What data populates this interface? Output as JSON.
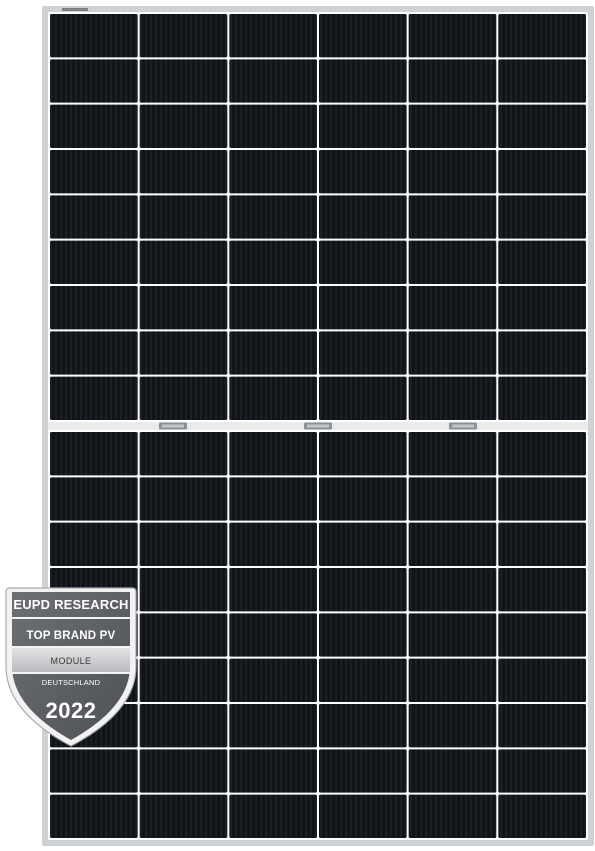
{
  "image": {
    "subject": "half-cut monocrystalline solar module",
    "frame_color": "#cfd2d5",
    "cell_color": "#101318",
    "busbar_color": "#2a2f36",
    "gap_color": "#ffffff",
    "module": {
      "cell_columns": 6,
      "cell_rows_per_half": 9,
      "halves": 2,
      "junction_boxes": 3
    }
  },
  "badge": {
    "organization": "EUPD RESEARCH",
    "title": "TOP BRAND PV",
    "category": "MODULE",
    "country": "DEUTSCHLAND",
    "year": "2022",
    "colors": {
      "dark": "#5f6266",
      "light": "#c9cbce",
      "rim": "#eeeeee"
    }
  }
}
